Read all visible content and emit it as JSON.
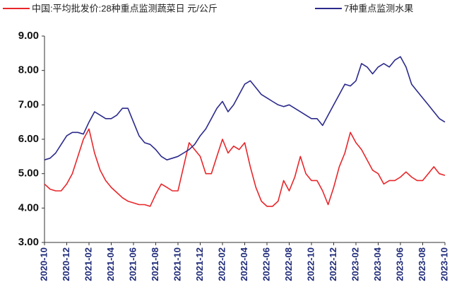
{
  "chart_data": {
    "type": "line",
    "categories": [
      "2020-10",
      null,
      null,
      null,
      "2020-12",
      null,
      null,
      null,
      "2021-02",
      null,
      null,
      null,
      "2021-04",
      null,
      null,
      null,
      "2021-06",
      null,
      null,
      null,
      "2021-08",
      null,
      null,
      null,
      "2021-10",
      null,
      null,
      null,
      "2021-12",
      null,
      null,
      null,
      "2022-02",
      null,
      null,
      null,
      "2022-04",
      null,
      null,
      null,
      "2022-06",
      null,
      null,
      null,
      "2022-08",
      null,
      null,
      null,
      "2022-10",
      null,
      null,
      null,
      "2022-12",
      null,
      null,
      null,
      "2023-02",
      null,
      null,
      null,
      "2023-04",
      null,
      null,
      null,
      "2023-06",
      null,
      null,
      null,
      "2023-08",
      null,
      null,
      null,
      "2023-10"
    ],
    "series": [
      {
        "name": "中国:平均批发价:28种重点监测蔬菜日 元/公斤",
        "color": "#e8262a",
        "values": [
          4.7,
          4.55,
          4.5,
          4.5,
          4.7,
          5.0,
          5.5,
          6.0,
          6.3,
          5.6,
          5.1,
          4.8,
          4.6,
          4.45,
          4.3,
          4.2,
          4.15,
          4.1,
          4.1,
          4.05,
          4.4,
          4.7,
          4.6,
          4.5,
          4.5,
          5.2,
          5.9,
          5.7,
          5.5,
          5.0,
          5.0,
          5.5,
          6.0,
          5.6,
          5.8,
          5.7,
          5.9,
          5.2,
          4.6,
          4.2,
          4.05,
          4.05,
          4.2,
          4.8,
          4.5,
          4.9,
          5.5,
          5.0,
          4.8,
          4.8,
          4.5,
          4.1,
          4.6,
          5.2,
          5.6,
          6.2,
          5.9,
          5.7,
          5.4,
          5.1,
          5.0,
          4.7,
          4.8,
          4.8,
          4.9,
          5.05,
          4.9,
          4.8,
          4.8,
          5.0,
          5.2,
          5.0,
          4.95
        ]
      },
      {
        "name": "7种重点监测水果",
        "color": "#2b2a8c",
        "values": [
          5.4,
          5.45,
          5.6,
          5.85,
          6.1,
          6.2,
          6.2,
          6.15,
          6.5,
          6.8,
          6.7,
          6.6,
          6.6,
          6.7,
          6.9,
          6.9,
          6.5,
          6.1,
          5.9,
          5.85,
          5.7,
          5.5,
          5.4,
          5.45,
          5.5,
          5.6,
          5.7,
          5.85,
          6.1,
          6.3,
          6.6,
          6.9,
          7.1,
          6.8,
          7.0,
          7.3,
          7.6,
          7.7,
          7.5,
          7.3,
          7.2,
          7.1,
          7.0,
          6.95,
          7.0,
          6.9,
          6.8,
          6.7,
          6.6,
          6.6,
          6.4,
          6.7,
          7.0,
          7.3,
          7.6,
          7.55,
          7.7,
          8.2,
          8.1,
          7.9,
          8.1,
          8.2,
          8.1,
          8.3,
          8.4,
          8.1,
          7.6,
          7.4,
          7.2,
          7.0,
          6.8,
          6.6,
          6.5
        ]
      }
    ],
    "ylim": [
      3,
      9
    ],
    "yticks": [
      {
        "value": 3,
        "label": "3.00"
      },
      {
        "value": 4,
        "label": "4.00"
      },
      {
        "value": 5,
        "label": "5.00"
      },
      {
        "value": 6,
        "label": "6.00"
      },
      {
        "value": 7,
        "label": "7.00"
      },
      {
        "value": 8,
        "label": "8.00"
      },
      {
        "value": 9,
        "label": "9.00"
      }
    ]
  }
}
